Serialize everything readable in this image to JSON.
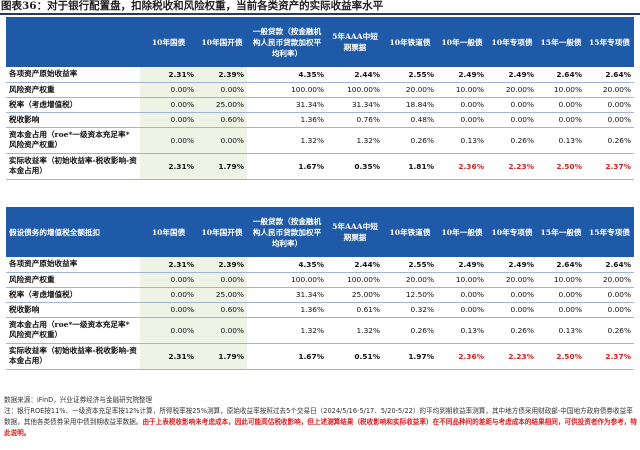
{
  "title": "图表36：对于银行配置盘，扣除税收和风险权重，当前各类资产的实际收益率水平",
  "accent_header": "#1e5aa7",
  "columns": [
    "10年国债",
    "10年国开债",
    "一般贷款（按金融机构人民币贷款加权平均利率）",
    "5年AAA中短期票据",
    "10年铁道债",
    "10年一般债",
    "10年专项债",
    "15年一般债",
    "15年专项债"
  ],
  "table1": {
    "corner": "",
    "rows": [
      {
        "label": "各项资产原始收益率",
        "values": [
          "2.31%",
          "2.39%",
          "4.35%",
          "2.44%",
          "2.55%",
          "2.49%",
          "2.49%",
          "2.64%",
          "2.64%"
        ]
      },
      {
        "label": "风险资产权重",
        "values": [
          "0.00%",
          "0.00%",
          "100.00%",
          "100.00%",
          "20.00%",
          "10.00%",
          "20.00%",
          "10.00%",
          "20.00%"
        ]
      },
      {
        "label": "税率（考虑增值税）",
        "values": [
          "0.00%",
          "25.00%",
          "31.34%",
          "31.34%",
          "18.84%",
          "0.00%",
          "0.00%",
          "0.00%",
          "0.00%"
        ]
      },
      {
        "label": "税收影响",
        "values": [
          "0.00%",
          "0.60%",
          "1.36%",
          "0.76%",
          "0.48%",
          "0.00%",
          "0.00%",
          "0.00%",
          "0.00%"
        ]
      },
      {
        "label": "资本金占用（roe*一级资本充足率*风险资产权重）",
        "values": [
          "0.00%",
          "0.00%",
          "1.32%",
          "1.32%",
          "0.26%",
          "0.13%",
          "0.26%",
          "0.13%",
          "0.26%"
        ]
      },
      {
        "label": "实际收益率（初始收益率-税收影响-资本金占用）",
        "values": [
          "2.31%",
          "1.79%",
          "1.67%",
          "0.35%",
          "1.81%",
          "2.36%",
          "2.23%",
          "2.50%",
          "2.37%"
        ]
      }
    ]
  },
  "table2": {
    "corner": "假设债务的增值税全额抵扣",
    "rows": [
      {
        "label": "各项资产原始收益率",
        "values": [
          "2.31%",
          "2.39%",
          "4.35%",
          "2.44%",
          "2.55%",
          "2.49%",
          "2.49%",
          "2.64%",
          "2.64%"
        ]
      },
      {
        "label": "风险资产权重",
        "values": [
          "0.00%",
          "0.00%",
          "100.00%",
          "100.00%",
          "20.00%",
          "10.00%",
          "20.00%",
          "10.00%",
          "20.00%"
        ]
      },
      {
        "label": "税率（考虑增值税）",
        "values": [
          "0.00%",
          "25.00%",
          "31.34%",
          "25.00%",
          "12.50%",
          "0.00%",
          "0.00%",
          "0.00%",
          "0.00%"
        ]
      },
      {
        "label": "税收影响",
        "values": [
          "0.00%",
          "0.60%",
          "1.36%",
          "0.61%",
          "0.32%",
          "0.00%",
          "0.00%",
          "0.00%",
          "0.00%"
        ]
      },
      {
        "label": "资本金占用（roe*一级资本充足率*风险资产权重）",
        "values": [
          "0.00%",
          "0.00%",
          "1.32%",
          "1.32%",
          "0.26%",
          "0.13%",
          "0.26%",
          "0.13%",
          "0.26%"
        ]
      },
      {
        "label": "实际收益率（初始收益率-税收影响-资本金占用）",
        "values": [
          "2.31%",
          "1.79%",
          "1.67%",
          "0.51%",
          "1.97%",
          "2.36%",
          "2.23%",
          "2.50%",
          "2.37%"
        ]
      }
    ]
  },
  "footer": {
    "source": "数据来源：iFinD，兴业证券经济与金融研究院整理",
    "note_black": "注：银行ROE按11%、一级资本充足率按12%计算，所得税率按25%测算，原始收益率按照过去5个交易日（2024/5/16-5/17、5/20-5/22）的平均到期收益率测算，其中地方债采用财政部-中国地方政府债券收益率数据，其他各类债券采用中债到期收益率数据。",
    "note_red": "由于上表税收影响未考虑成本，因此可能高估税收影响，但上述测算结果（税收影响和实际收益率）在不同品种间的差距与考虑成本的结果相同，可供投资者作为参考，特此说明。"
  }
}
